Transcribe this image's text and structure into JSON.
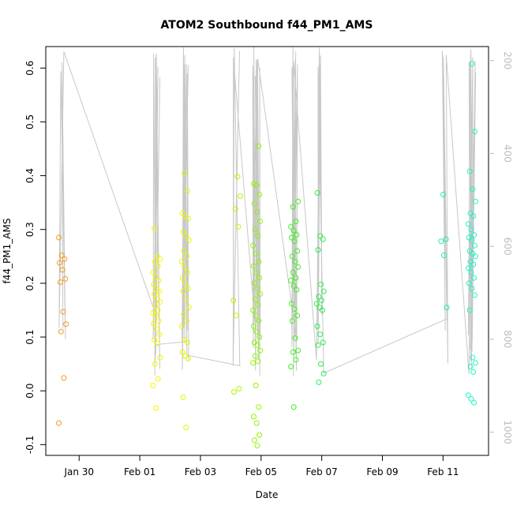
{
  "chart_data": {
    "type": "scatter",
    "title": "ATOM2 Southbound f44_PM1_AMS",
    "xlabel": "Date",
    "ylabel": "f44_PM1_AMS",
    "x_unit": "date (Feb 2017 implied, days)",
    "xlim": [
      "Jan 27 22:00",
      "Feb 11 12:00"
    ],
    "ylim": [
      -0.12,
      0.64
    ],
    "x_ticks": [
      "Jan 30",
      "Feb 01",
      "Feb 03",
      "Feb 05",
      "Feb 07",
      "Feb 09",
      "Feb 11"
    ],
    "y_ticks": [
      -0.1,
      0.0,
      0.1,
      0.2,
      0.3,
      0.4,
      0.5,
      0.6
    ],
    "secondary_axis": {
      "side": "right",
      "ticks": [
        200,
        400,
        600,
        800,
        1000
      ],
      "color": "#bdbdbd",
      "range": [
        170,
        1050
      ],
      "inverted": true
    },
    "grid": false,
    "legend": "none",
    "point_style": "open-circle",
    "clusters": [
      {
        "day": -2.55,
        "color": "#f59a1c",
        "values": [
          0.285,
          0.252,
          0.245,
          0.238,
          0.225,
          0.208,
          0.202,
          0.147,
          0.124,
          0.11,
          0.024,
          -0.06
        ]
      },
      {
        "day": 0.55,
        "color": "#f5f500",
        "values": [
          0.302,
          0.25,
          0.245,
          0.24,
          0.232,
          0.22,
          0.212,
          0.205,
          0.198,
          0.19,
          0.185,
          0.18,
          0.172,
          0.165,
          0.158,
          0.15,
          0.145,
          0.14,
          0.13,
          0.125,
          0.115,
          0.105,
          0.095,
          0.088,
          0.062,
          0.05,
          0.022,
          0.01,
          -0.032
        ]
      },
      {
        "day": 1.5,
        "color": "#e6f500",
        "values": [
          0.405,
          0.372,
          0.33,
          0.325,
          0.32,
          0.295,
          0.288,
          0.28,
          0.26,
          0.25,
          0.24,
          0.23,
          0.22,
          0.21,
          0.2,
          0.19,
          0.185,
          0.17,
          0.155,
          0.142,
          0.13,
          0.12,
          0.095,
          0.09,
          0.072,
          0.065,
          0.06,
          -0.012,
          -0.068
        ]
      },
      {
        "day": 3.2,
        "color": "#b8f500",
        "values": [
          0.398,
          0.362,
          0.338,
          0.305,
          0.168,
          0.14,
          0.004,
          -0.002
        ]
      },
      {
        "day": 3.85,
        "color": "#8ff500",
        "values": [
          0.455,
          0.385,
          0.382,
          0.365,
          0.348,
          0.332,
          0.315,
          0.3,
          0.288,
          0.27,
          0.255,
          0.24,
          0.232,
          0.22,
          0.21,
          0.2,
          0.19,
          0.18,
          0.17,
          0.16,
          0.15,
          0.14,
          0.13,
          0.12,
          0.11,
          0.1,
          0.09,
          0.085,
          0.075,
          0.065,
          0.055,
          0.052,
          0.01,
          -0.03,
          -0.048,
          -0.06,
          -0.082,
          -0.092,
          -0.102
        ]
      },
      {
        "day": 5.1,
        "color": "#3cf01c",
        "values": [
          0.352,
          0.342,
          0.315,
          0.305,
          0.298,
          0.29,
          0.285,
          0.278,
          0.26,
          0.25,
          0.24,
          0.23,
          0.22,
          0.21,
          0.205,
          0.195,
          0.188,
          0.162,
          0.152,
          0.14,
          0.13,
          0.098,
          0.075,
          0.072,
          0.058,
          0.045,
          -0.03
        ]
      },
      {
        "day": 5.95,
        "color": "#28ee50",
        "values": [
          0.368,
          0.288,
          0.282,
          0.262,
          0.198,
          0.185,
          0.175,
          0.168,
          0.162,
          0.155,
          0.15,
          0.12,
          0.105,
          0.09,
          0.085,
          0.05,
          0.032,
          0.016
        ]
      },
      {
        "day": 10.05,
        "color": "#1cf0a8",
        "values": [
          0.365,
          0.282,
          0.278,
          0.252,
          0.155
        ]
      },
      {
        "day": 10.95,
        "color": "#1ef5c2",
        "values": [
          0.608,
          0.482,
          0.408,
          0.375,
          0.352,
          0.33,
          0.325,
          0.31,
          0.3,
          0.29,
          0.285,
          0.28,
          0.27,
          0.26,
          0.255,
          0.25,
          0.24,
          0.235,
          0.228,
          0.22,
          0.21,
          0.2,
          0.19,
          0.178,
          0.15,
          0.062,
          0.052,
          0.045,
          0.035,
          -0.008,
          -0.015,
          -0.022
        ]
      }
    ]
  }
}
